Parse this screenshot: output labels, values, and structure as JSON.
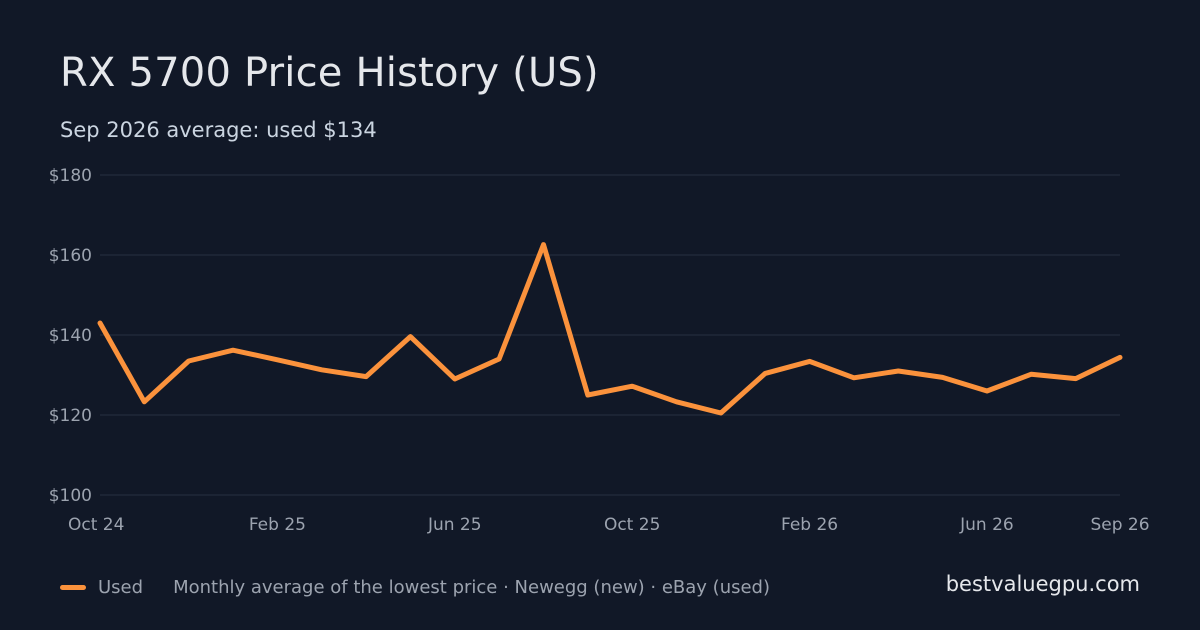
{
  "header": {
    "title": "RX 5700 Price History (US)",
    "subtitle": "Sep 2026 average: used $134"
  },
  "footer": {
    "legend_label": "Used",
    "note": "Monthly average of the lowest price · Newegg (new) · eBay (used)",
    "brand": "bestvaluegpu.com"
  },
  "colors": {
    "background": "#111827",
    "line": "#fb923c",
    "grid": "#273142",
    "text_muted": "#9ca3af"
  },
  "chart_data": {
    "type": "line",
    "title": "RX 5700 Price History (US)",
    "subtitle": "Sep 2026 average: used $134",
    "xlabel": "",
    "ylabel": "",
    "ylim": [
      100,
      180
    ],
    "yticks": [
      100,
      120,
      140,
      160,
      180
    ],
    "ytick_labels": [
      "$100",
      "$120",
      "$140",
      "$160",
      "$180"
    ],
    "grid": true,
    "legend_position": "bottom-left",
    "x": [
      "2024-10",
      "2024-11",
      "2024-12",
      "2025-01",
      "2025-02",
      "2025-03",
      "2025-04",
      "2025-05",
      "2025-06",
      "2025-07",
      "2025-08",
      "2025-09",
      "2025-10",
      "2025-11",
      "2025-12",
      "2026-01",
      "2026-02",
      "2026-03",
      "2026-04",
      "2026-05",
      "2026-06",
      "2026-07",
      "2026-08",
      "2026-09"
    ],
    "xticks": [
      {
        "x": "2024-10",
        "label": "Oct 24"
      },
      {
        "x": "2025-02",
        "label": "Feb 25"
      },
      {
        "x": "2025-06",
        "label": "Jun 25"
      },
      {
        "x": "2025-10",
        "label": "Oct 25"
      },
      {
        "x": "2026-02",
        "label": "Feb 26"
      },
      {
        "x": "2026-06",
        "label": "Jun 26"
      },
      {
        "x": "2026-09",
        "label": "Sep 26"
      }
    ],
    "series": [
      {
        "name": "Used",
        "color": "#fb923c",
        "values": [
          143,
          123.3,
          133.5,
          136.2,
          133.8,
          131.3,
          129.6,
          139.6,
          129,
          134,
          162.6,
          125,
          127.2,
          123.3,
          120.5,
          130.4,
          133.4,
          129.3,
          131,
          129.4,
          126,
          130.2,
          129.1,
          134.4
        ]
      }
    ]
  }
}
